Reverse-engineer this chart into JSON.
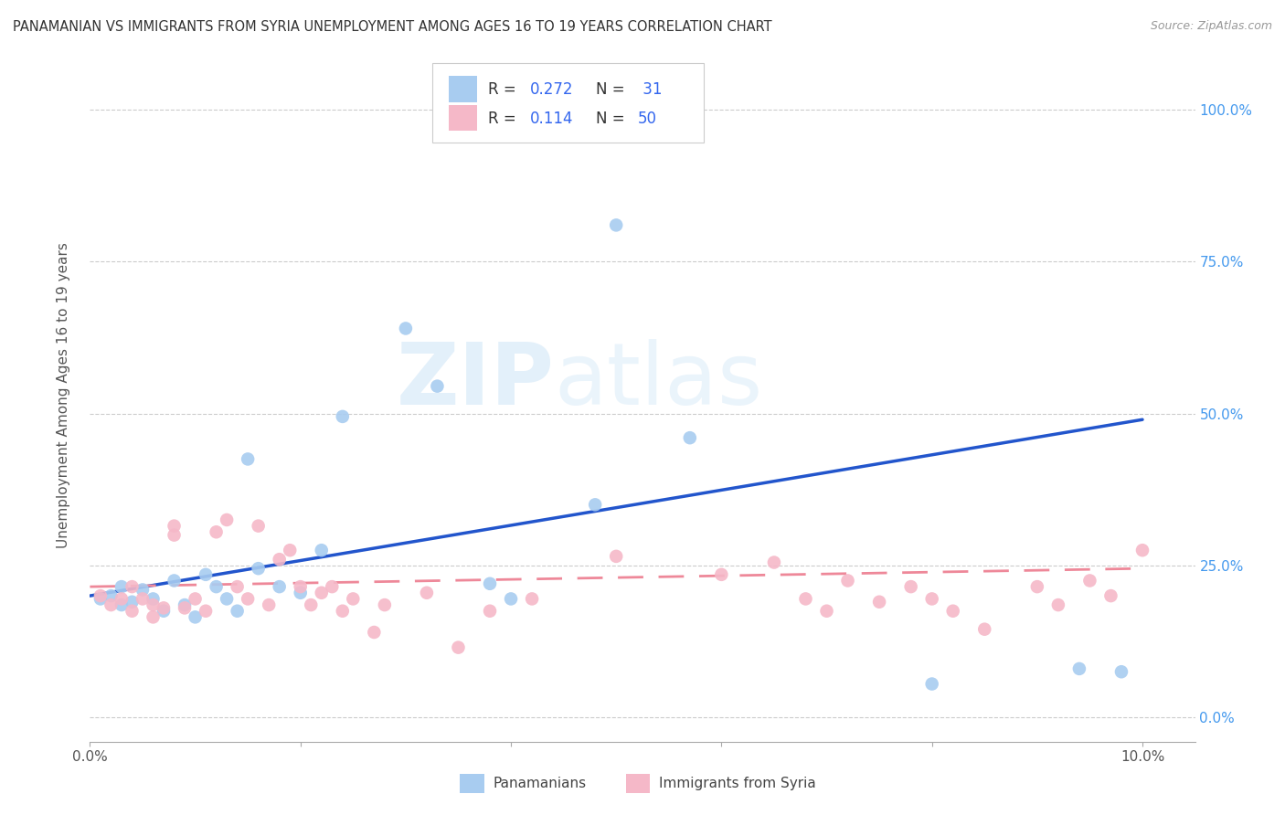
{
  "title": "PANAMANIAN VS IMMIGRANTS FROM SYRIA UNEMPLOYMENT AMONG AGES 16 TO 19 YEARS CORRELATION CHART",
  "source": "Source: ZipAtlas.com",
  "ylabel": "Unemployment Among Ages 16 to 19 years",
  "xlim": [
    0.0,
    0.105
  ],
  "ylim": [
    -0.04,
    1.1
  ],
  "xticks": [
    0.0,
    0.02,
    0.04,
    0.06,
    0.08,
    0.1
  ],
  "xtick_labels": [
    "0.0%",
    "",
    "",
    "",
    "",
    "10.0%"
  ],
  "yticks": [
    0.0,
    0.25,
    0.5,
    0.75,
    1.0
  ],
  "ytick_labels_right": [
    "0.0%",
    "25.0%",
    "50.0%",
    "75.0%",
    "100.0%"
  ],
  "blue_color": "#a8ccf0",
  "pink_color": "#f5b8c8",
  "blue_line_color": "#2255cc",
  "pink_line_color": "#ee8899",
  "watermark_zip": "ZIP",
  "watermark_atlas": "atlas",
  "legend_r1_label": "R = ",
  "legend_r1_val": "0.272",
  "legend_n1_label": "N = ",
  "legend_n1_val": " 31",
  "legend_r2_label": "R =  ",
  "legend_r2_val": "0.114",
  "legend_n2_label": "N = ",
  "legend_n2_val": "50",
  "pan_x": [
    0.001,
    0.002,
    0.003,
    0.003,
    0.004,
    0.005,
    0.006,
    0.007,
    0.008,
    0.009,
    0.01,
    0.011,
    0.012,
    0.013,
    0.014,
    0.015,
    0.016,
    0.018,
    0.02,
    0.022,
    0.024,
    0.03,
    0.033,
    0.038,
    0.04,
    0.048,
    0.05,
    0.057,
    0.08,
    0.094,
    0.098
  ],
  "pan_y": [
    0.195,
    0.2,
    0.185,
    0.215,
    0.19,
    0.21,
    0.195,
    0.175,
    0.225,
    0.185,
    0.165,
    0.235,
    0.215,
    0.195,
    0.175,
    0.425,
    0.245,
    0.215,
    0.205,
    0.275,
    0.495,
    0.64,
    0.545,
    0.22,
    0.195,
    0.35,
    0.81,
    0.46,
    0.055,
    0.08,
    0.075
  ],
  "syria_x": [
    0.001,
    0.002,
    0.003,
    0.004,
    0.004,
    0.005,
    0.006,
    0.006,
    0.007,
    0.008,
    0.008,
    0.009,
    0.01,
    0.011,
    0.012,
    0.013,
    0.014,
    0.015,
    0.016,
    0.017,
    0.018,
    0.019,
    0.02,
    0.021,
    0.022,
    0.023,
    0.024,
    0.025,
    0.027,
    0.028,
    0.032,
    0.035,
    0.038,
    0.042,
    0.05,
    0.06,
    0.065,
    0.068,
    0.07,
    0.072,
    0.075,
    0.078,
    0.08,
    0.082,
    0.085,
    0.09,
    0.092,
    0.095,
    0.097,
    0.1
  ],
  "syria_y": [
    0.2,
    0.185,
    0.195,
    0.215,
    0.175,
    0.195,
    0.185,
    0.165,
    0.18,
    0.3,
    0.315,
    0.18,
    0.195,
    0.175,
    0.305,
    0.325,
    0.215,
    0.195,
    0.315,
    0.185,
    0.26,
    0.275,
    0.215,
    0.185,
    0.205,
    0.215,
    0.175,
    0.195,
    0.14,
    0.185,
    0.205,
    0.115,
    0.175,
    0.195,
    0.265,
    0.235,
    0.255,
    0.195,
    0.175,
    0.225,
    0.19,
    0.215,
    0.195,
    0.175,
    0.145,
    0.215,
    0.185,
    0.225,
    0.2,
    0.275
  ],
  "blue_trend_x0": 0.0,
  "blue_trend_y0": 0.2,
  "blue_trend_x1": 0.1,
  "blue_trend_y1": 0.49,
  "pink_trend_x0": 0.0,
  "pink_trend_y0": 0.215,
  "pink_trend_x1": 0.1,
  "pink_trend_y1": 0.245
}
